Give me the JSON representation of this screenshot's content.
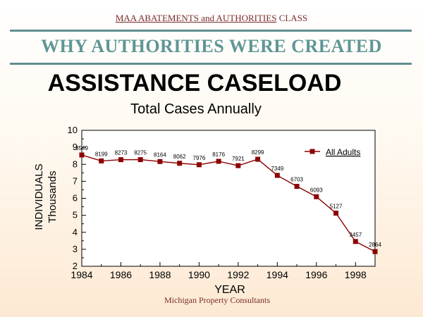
{
  "header": {
    "course_prefix": "MAA ABATEMENTS and AUTHORITIES",
    "course_suffix": " CLASS",
    "slide_title": "WHY AUTHORITIES WERE CREATED"
  },
  "footer": {
    "credit": "Michigan Property Consultants"
  },
  "colors": {
    "rule": "#5f8f8f",
    "slide_title": "#5f9696",
    "series": "#8b0000"
  },
  "chart_data": {
    "type": "line",
    "title": "ASSISTANCE CASELOAD",
    "subtitle": "Total Cases Annually",
    "xlabel": "YEAR",
    "ylabel": [
      "INDIVIDUALS",
      "Thousands"
    ],
    "xlim": [
      1984,
      1999
    ],
    "ylim": [
      2,
      10
    ],
    "xticks": [
      "1984",
      "1986",
      "1988",
      "1990",
      "1992",
      "1994",
      "1996",
      "1998"
    ],
    "yticks": [
      "2",
      "3",
      "4",
      "5",
      "6",
      "7",
      "8",
      "9",
      "10"
    ],
    "grid": false,
    "legend_position": "top-right",
    "series": [
      {
        "name": "All Adults",
        "x": [
          1984,
          1985,
          1986,
          1987,
          1988,
          1989,
          1990,
          1991,
          1992,
          1993,
          1994,
          1995,
          1996,
          1997,
          1998,
          1999
        ],
        "values": [
          8.549,
          8.199,
          8.273,
          8.275,
          8.164,
          8.062,
          7.976,
          8.176,
          7.921,
          8.299,
          7.349,
          6.703,
          6.093,
          5.127,
          3.457,
          2.864
        ],
        "labels": [
          "8549",
          "8199",
          "8273",
          "8275",
          "8164",
          "8062",
          "7976",
          "8176",
          "7921",
          "8299",
          "7349",
          "6703",
          "6093",
          "5127",
          "3457",
          "2864"
        ]
      }
    ]
  }
}
